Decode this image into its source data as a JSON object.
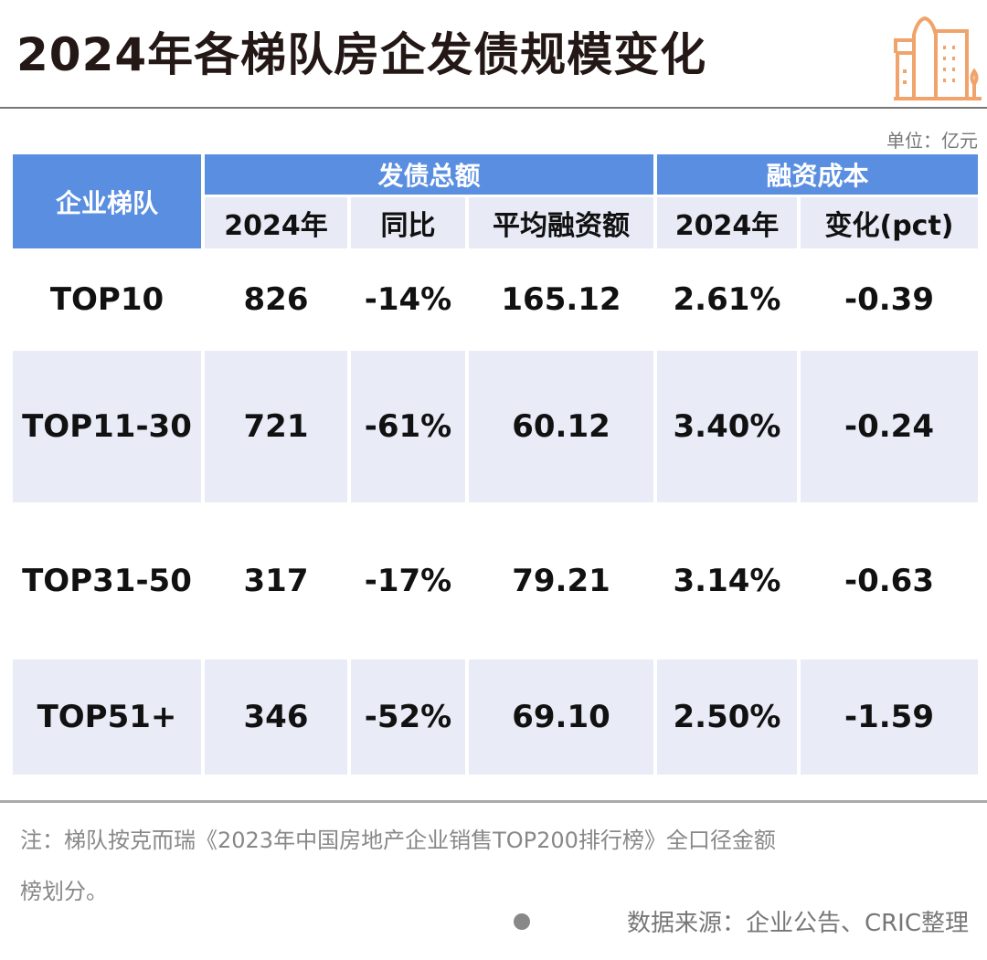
{
  "title": "2024年各梯队房企发债规模变化",
  "unit": "单位：亿元",
  "colors": {
    "header": "#5a8ee0",
    "stripe": "#e9ecf7",
    "logo": "#f0a36a"
  },
  "table": {
    "tier_header": "企业梯队",
    "group1": "发债总额",
    "group2": "融资成本",
    "subheaders": [
      "2024年",
      "同比",
      "平均融资额",
      "2024年",
      "变化(pct)"
    ],
    "rows": [
      [
        "TOP10",
        "826",
        "-14%",
        "165.12",
        "2.61%",
        "-0.39"
      ],
      [
        "TOP11-30",
        "721",
        "-61%",
        "60.12",
        "3.40%",
        "-0.24"
      ],
      [
        "TOP31-50",
        "317",
        "-17%",
        "79.21",
        "3.14%",
        "-0.63"
      ],
      [
        "TOP51+",
        "346",
        "-52%",
        "69.10",
        "2.50%",
        "-1.59"
      ]
    ]
  },
  "note_line1": "注：梯队按克而瑞《2023年中国房地产企业销售TOP200排行榜》全口径金额",
  "note_line2": "榜划分。",
  "source": "数据来源：企业公告、CRIC整理"
}
